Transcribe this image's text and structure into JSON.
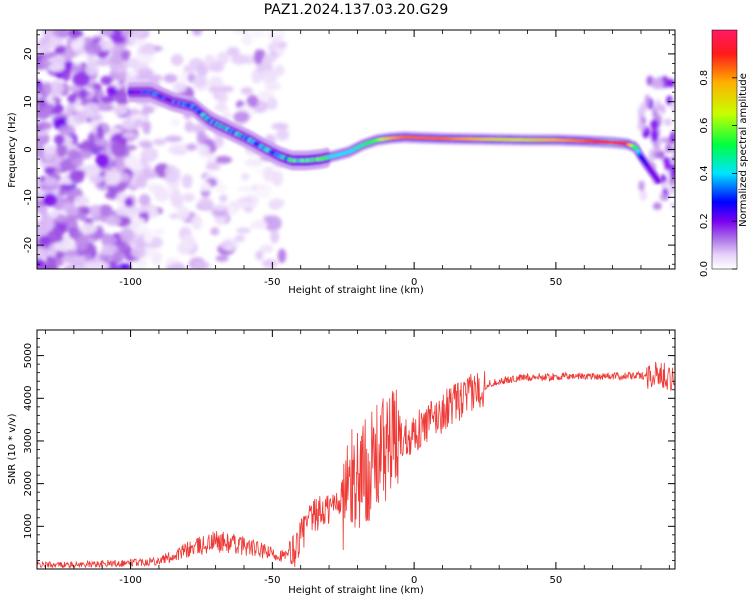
{
  "figure": {
    "title": "PAZ1.2024.137.03.20.G29"
  },
  "colors": {
    "snr_line": "#ee3a36",
    "frame": "#000000",
    "background": "#ffffff",
    "colormap": [
      "#ffffff",
      "#d9b8f5",
      "#a05ae0",
      "#7a00f0",
      "#0000ff",
      "#00e5ff",
      "#00ff40",
      "#c8ff00",
      "#ffb000",
      "#ff1a1a",
      "#ff1a66"
    ]
  },
  "chart_data": [
    {
      "type": "heatmap",
      "xlabel": "Height of straight line (km)",
      "ylabel": "Frequency (Hz)",
      "xlim": [
        -133,
        92
      ],
      "ylim": [
        -25,
        25
      ],
      "xticks": [
        -100,
        -50,
        0,
        50
      ],
      "xtick_labels": [
        "-100",
        "-50",
        "0",
        "50"
      ],
      "yticks": [
        -20,
        -10,
        0,
        10,
        20
      ],
      "ytick_labels": [
        "-20",
        "-10",
        "0",
        "10",
        "20"
      ],
      "colorbar": {
        "label": "Normalized spectral amplitude",
        "range": [
          0,
          1
        ],
        "ticks": [
          0.0,
          0.2,
          0.4,
          0.6,
          0.8
        ],
        "tick_labels": [
          "0.0",
          "0.2",
          "0.4",
          "0.6",
          "0.8"
        ]
      },
      "ridge": {
        "height_km": [
          -100,
          -93,
          -85,
          -78,
          -72,
          -65,
          -58,
          -52,
          -47,
          -43,
          -38,
          -33,
          -28,
          -23,
          -18,
          -13,
          -8,
          -3,
          0,
          5,
          10,
          20,
          30,
          40,
          50,
          60,
          70,
          75,
          78,
          80,
          83,
          86
        ],
        "frequency_hz": [
          12,
          12,
          10,
          9,
          6,
          4,
          2,
          0,
          -1.5,
          -2.3,
          -2.3,
          -2.0,
          -1.3,
          -0.5,
          1.0,
          2.0,
          2.4,
          2.6,
          2.5,
          2.4,
          2.3,
          2.2,
          2.1,
          2.0,
          2.0,
          1.8,
          1.5,
          1.2,
          0.5,
          -1.5,
          -4.0,
          -6.5
        ],
        "amplitude": [
          0.3,
          0.35,
          0.35,
          0.4,
          0.45,
          0.45,
          0.45,
          0.45,
          0.5,
          0.55,
          0.6,
          0.55,
          0.5,
          0.5,
          0.55,
          0.65,
          0.8,
          0.85,
          0.85,
          0.85,
          0.85,
          0.8,
          0.75,
          0.75,
          0.8,
          0.85,
          0.95,
          0.9,
          0.6,
          0.4,
          0.3,
          0.25
        ]
      }
    },
    {
      "type": "line",
      "xlabel": "Height of straight line (km)",
      "ylabel": "SNR (10 * v/v)",
      "xlim": [
        -133,
        92
      ],
      "ylim": [
        0,
        5600
      ],
      "xticks": [
        -100,
        -50,
        0,
        50
      ],
      "xtick_labels": [
        "-100",
        "-50",
        "0",
        "50"
      ],
      "yticks": [
        1000,
        2000,
        3000,
        4000,
        5000
      ],
      "ytick_labels": [
        "1000",
        "2000",
        "3000",
        "4000",
        "5000"
      ],
      "series": [
        {
          "height_km": [
            -133,
            -120,
            -110,
            -100,
            -90,
            -85,
            -80,
            -75,
            -70,
            -65,
            -60,
            -55,
            -50,
            -45,
            -42,
            -40,
            -37,
            -34,
            -30,
            -27,
            -24,
            -21,
            -18,
            -15,
            -12,
            -9,
            -6,
            -3,
            0,
            3,
            6,
            9,
            12,
            15,
            18,
            21,
            24,
            27,
            30,
            35,
            40,
            45,
            50,
            55,
            60,
            65,
            70,
            75,
            80,
            85,
            88,
            90,
            92
          ],
          "snr": [
            100,
            100,
            120,
            150,
            200,
            300,
            450,
            550,
            650,
            600,
            550,
            450,
            350,
            300,
            450,
            800,
            1100,
            1300,
            1400,
            1600,
            1800,
            2100,
            2300,
            2400,
            2700,
            2900,
            3000,
            3100,
            3200,
            3300,
            3500,
            3600,
            3800,
            3900,
            4000,
            4150,
            4250,
            4350,
            4400,
            4450,
            4500,
            4500,
            4500,
            4520,
            4520,
            4520,
            4520,
            4520,
            4530,
            4550,
            4550,
            4500,
            4400
          ]
        }
      ]
    }
  ]
}
